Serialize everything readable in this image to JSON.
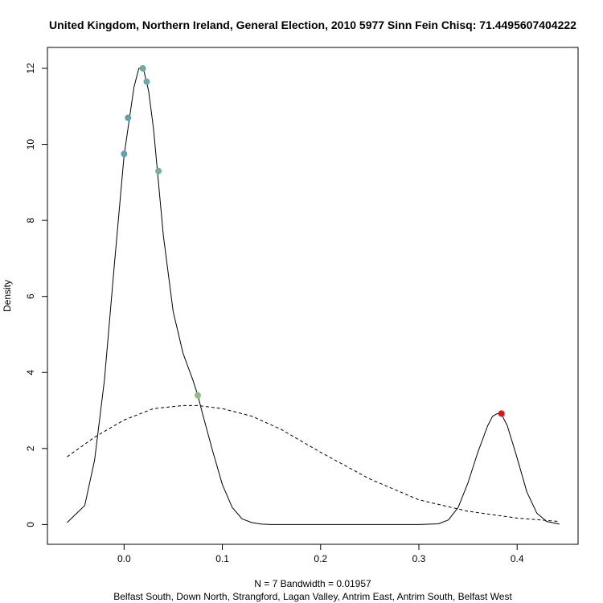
{
  "chart_data": {
    "type": "line",
    "title": "United Kingdom, Northern Ireland, General Election, 2010 5977 Sinn Fein Chisq: 71.4495607404222",
    "xlabel_line1": "N = 7   Bandwidth = 0.01957",
    "xlabel_line2": "Belfast South, Down North, Strangford, Lagan Valley, Antrim East, Antrim South, Belfast West",
    "ylabel": "Density",
    "xlim": [
      -0.078,
      0.462
    ],
    "ylim": [
      -0.52,
      12.55
    ],
    "x_ticks": [
      0.0,
      0.1,
      0.2,
      0.3,
      0.4
    ],
    "x_tick_labels": [
      "0.0",
      "0.1",
      "0.2",
      "0.3",
      "0.4"
    ],
    "y_ticks": [
      0,
      2,
      4,
      6,
      8,
      10,
      12
    ],
    "y_tick_labels": [
      "0",
      "2",
      "4",
      "6",
      "8",
      "10",
      "12"
    ],
    "series": [
      {
        "style": "solid",
        "x": [
          -0.058,
          -0.04,
          -0.03,
          -0.02,
          -0.01,
          0.0,
          0.01,
          0.015,
          0.02,
          0.025,
          0.03,
          0.035,
          0.04,
          0.05,
          0.06,
          0.07,
          0.075,
          0.08,
          0.09,
          0.1,
          0.11,
          0.12,
          0.13,
          0.14,
          0.15,
          0.2,
          0.25,
          0.3,
          0.32,
          0.33,
          0.34,
          0.35,
          0.36,
          0.37,
          0.375,
          0.38,
          0.385,
          0.39,
          0.4,
          0.41,
          0.42,
          0.43,
          0.443
        ],
        "y": [
          0.05,
          0.5,
          1.7,
          3.8,
          6.8,
          9.7,
          11.5,
          12.0,
          11.95,
          11.4,
          10.4,
          9.0,
          7.6,
          5.6,
          4.5,
          3.8,
          3.4,
          2.9,
          1.95,
          1.05,
          0.45,
          0.15,
          0.05,
          0.01,
          0.0,
          0.0,
          0.0,
          0.0,
          0.02,
          0.12,
          0.45,
          1.1,
          1.9,
          2.6,
          2.85,
          2.92,
          2.85,
          2.6,
          1.75,
          0.85,
          0.3,
          0.08,
          0.01
        ]
      },
      {
        "style": "dashed",
        "x": [
          -0.058,
          -0.03,
          0.0,
          0.03,
          0.06,
          0.075,
          0.1,
          0.13,
          0.16,
          0.2,
          0.25,
          0.3,
          0.35,
          0.4,
          0.443
        ],
        "y": [
          1.78,
          2.3,
          2.75,
          3.05,
          3.13,
          3.13,
          3.05,
          2.85,
          2.5,
          1.9,
          1.2,
          0.65,
          0.35,
          0.17,
          0.08
        ]
      }
    ],
    "points": [
      {
        "x": 0.0,
        "y": 9.75,
        "color": "#5ba3b0"
      },
      {
        "x": 0.004,
        "y": 10.7,
        "color": "#5ba3b0"
      },
      {
        "x": 0.019,
        "y": 12.0,
        "color": "#6aaca5"
      },
      {
        "x": 0.023,
        "y": 11.65,
        "color": "#6aaca5"
      },
      {
        "x": 0.035,
        "y": 9.3,
        "color": "#72b19a"
      },
      {
        "x": 0.075,
        "y": 3.4,
        "color": "#8ebf7d"
      },
      {
        "x": 0.384,
        "y": 2.92,
        "color": "#e81010"
      }
    ],
    "grid": false,
    "legend": "none"
  }
}
